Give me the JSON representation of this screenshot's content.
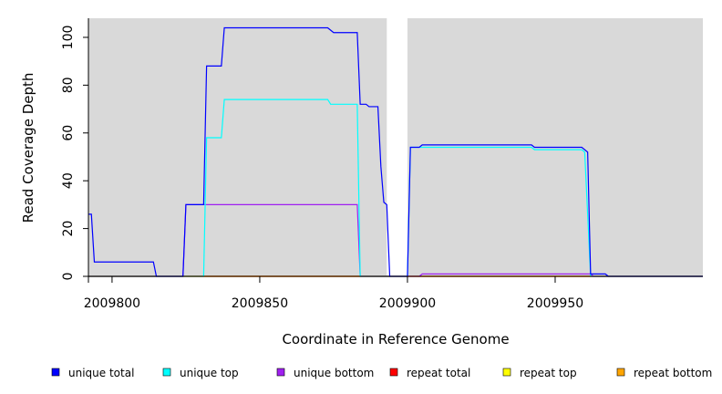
{
  "chart_data": {
    "type": "line",
    "title": "",
    "xlabel": "Coordinate in Reference Genome",
    "ylabel": "Read Coverage Depth",
    "xlim": [
      2009792,
      2010000
    ],
    "ylim": [
      0,
      108
    ],
    "x_ticks": [
      2009800,
      2009850,
      2009900,
      2009950
    ],
    "x_tick_labels": [
      "2009800",
      "2009850",
      "2009900",
      "2009950"
    ],
    "y_ticks": [
      0,
      20,
      40,
      60,
      80,
      100
    ],
    "y_tick_labels": [
      "0",
      "20",
      "40",
      "60",
      "80",
      "100"
    ],
    "grid": false,
    "plot_background": "#d9d9d9",
    "gap_regions": [
      [
        2009893,
        2009900
      ]
    ],
    "legend_position": "bottom",
    "series": [
      {
        "name": "unique total",
        "color": "#0000ff",
        "step": true,
        "points": [
          [
            2009792,
            26
          ],
          [
            2009793,
            26
          ],
          [
            2009794,
            6
          ],
          [
            2009814,
            6
          ],
          [
            2009815,
            0
          ],
          [
            2009824,
            0
          ],
          [
            2009825,
            30
          ],
          [
            2009831,
            30
          ],
          [
            2009832,
            88
          ],
          [
            2009837,
            88
          ],
          [
            2009838,
            104
          ],
          [
            2009873,
            104
          ],
          [
            2009874,
            103
          ],
          [
            2009875,
            102
          ],
          [
            2009883,
            102
          ],
          [
            2009884,
            72
          ],
          [
            2009886,
            72
          ],
          [
            2009887,
            71
          ],
          [
            2009890,
            71
          ],
          [
            2009891,
            46
          ],
          [
            2009892,
            31
          ],
          [
            2009893,
            30
          ],
          [
            2009894,
            0
          ],
          [
            2009900,
            0
          ],
          [
            2009901,
            54
          ],
          [
            2009904,
            54
          ],
          [
            2009905,
            55
          ],
          [
            2009942,
            55
          ],
          [
            2009943,
            54
          ],
          [
            2009959,
            54
          ],
          [
            2009960,
            53
          ],
          [
            2009961,
            52
          ],
          [
            2009962,
            1
          ],
          [
            2009967,
            1
          ],
          [
            2009968,
            0
          ],
          [
            2010000,
            0
          ]
        ]
      },
      {
        "name": "unique top",
        "color": "#00ffff",
        "step": true,
        "points": [
          [
            2009792,
            0
          ],
          [
            2009831,
            0
          ],
          [
            2009832,
            58
          ],
          [
            2009837,
            58
          ],
          [
            2009838,
            74
          ],
          [
            2009873,
            74
          ],
          [
            2009874,
            72
          ],
          [
            2009883,
            72
          ],
          [
            2009884,
            0
          ],
          [
            2009900,
            0
          ],
          [
            2009901,
            54
          ],
          [
            2009942,
            54
          ],
          [
            2009943,
            53
          ],
          [
            2009959,
            53
          ],
          [
            2009960,
            52
          ],
          [
            2009962,
            0
          ],
          [
            2010000,
            0
          ]
        ]
      },
      {
        "name": "unique bottom",
        "color": "#a020f0",
        "step": true,
        "points": [
          [
            2009792,
            0
          ],
          [
            2009824,
            0
          ],
          [
            2009825,
            30
          ],
          [
            2009883,
            30
          ],
          [
            2009884,
            0
          ],
          [
            2009904,
            0
          ],
          [
            2009905,
            1
          ],
          [
            2009962,
            1
          ],
          [
            2009963,
            0
          ],
          [
            2010000,
            0
          ]
        ]
      },
      {
        "name": "repeat total",
        "color": "#ff0000",
        "step": true,
        "points": [
          [
            2009792,
            0
          ],
          [
            2010000,
            0
          ]
        ]
      },
      {
        "name": "repeat top",
        "color": "#ffff00",
        "step": true,
        "points": [
          [
            2009792,
            0
          ],
          [
            2010000,
            0
          ]
        ]
      },
      {
        "name": "repeat bottom",
        "color": "#ffa500",
        "step": true,
        "points": [
          [
            2009792,
            0
          ],
          [
            2010000,
            0
          ]
        ]
      }
    ]
  }
}
